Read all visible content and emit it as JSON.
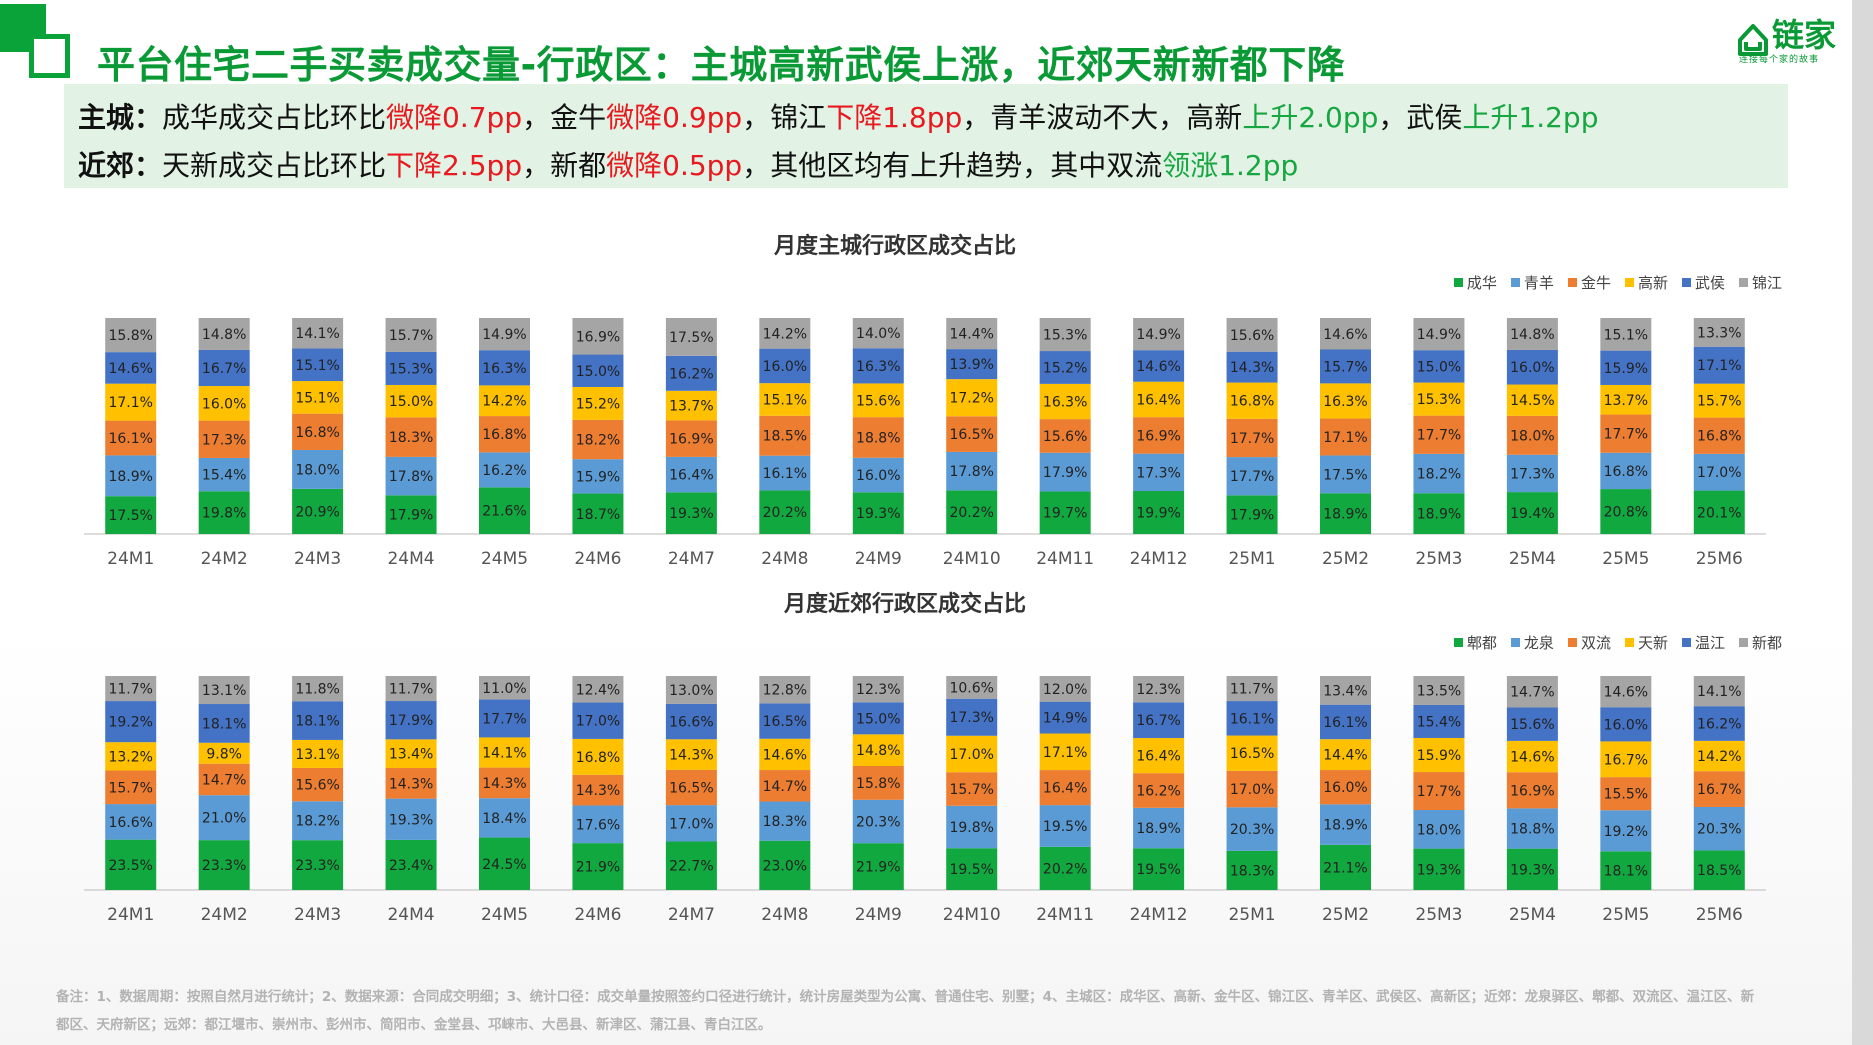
{
  "title": "平台住宅二手买卖成交量-行政区：主城高新武侯上涨，近郊天新新都下降",
  "logo": {
    "name": "链家",
    "slogan": "连接每个家的故事"
  },
  "summary": [
    {
      "label": "主城：",
      "segments": [
        {
          "text": "成华成交占比环比",
          "color": "normal"
        },
        {
          "text": "微降0.7pp",
          "color": "red"
        },
        {
          "text": "，金牛",
          "color": "normal"
        },
        {
          "text": "微降0.9pp",
          "color": "red"
        },
        {
          "text": "，锦江",
          "color": "normal"
        },
        {
          "text": "下降1.8pp",
          "color": "red"
        },
        {
          "text": "，青羊波动不大，高新",
          "color": "normal"
        },
        {
          "text": "上升2.0pp",
          "color": "green"
        },
        {
          "text": "，武侯",
          "color": "normal"
        },
        {
          "text": "上升1.2pp",
          "color": "green"
        }
      ]
    },
    {
      "label": "近郊：",
      "segments": [
        {
          "text": "天新成交占比环比",
          "color": "normal"
        },
        {
          "text": "下降2.5pp",
          "color": "red"
        },
        {
          "text": "，新都",
          "color": "normal"
        },
        {
          "text": "微降0.5pp",
          "color": "red"
        },
        {
          "text": "，其他区均有上升趋势，其中双流",
          "color": "normal"
        },
        {
          "text": "领涨1.2pp",
          "color": "green"
        }
      ]
    }
  ],
  "chart_data": [
    {
      "type": "bar",
      "stacked": true,
      "title": "月度主城行政区成交占比",
      "categories": [
        "24M1",
        "24M2",
        "24M3",
        "24M4",
        "24M5",
        "24M6",
        "24M7",
        "24M8",
        "24M9",
        "24M10",
        "24M11",
        "24M12",
        "25M1",
        "25M2",
        "25M3",
        "25M4",
        "25M5",
        "25M6"
      ],
      "legend_position": "top-right",
      "series": [
        {
          "name": "成华",
          "color": "#11a83f",
          "values": [
            17.5,
            19.8,
            20.9,
            17.9,
            21.6,
            18.7,
            19.3,
            20.2,
            19.3,
            20.2,
            19.7,
            19.9,
            17.9,
            18.9,
            18.9,
            19.4,
            20.8,
            20.1
          ]
        },
        {
          "name": "青羊",
          "color": "#5b9bd5",
          "values": [
            18.9,
            15.4,
            18.0,
            17.8,
            16.2,
            15.9,
            16.4,
            16.1,
            16.0,
            17.8,
            17.9,
            17.3,
            17.7,
            17.5,
            18.2,
            17.3,
            16.8,
            17.0
          ]
        },
        {
          "name": "金牛",
          "color": "#ed7d31",
          "values": [
            16.1,
            17.3,
            16.8,
            18.3,
            16.8,
            18.2,
            16.9,
            18.5,
            18.8,
            16.5,
            15.6,
            16.9,
            17.7,
            17.1,
            17.7,
            18.0,
            17.7,
            16.8
          ]
        },
        {
          "name": "高新",
          "color": "#ffc000",
          "values": [
            17.1,
            16.0,
            15.1,
            15.0,
            14.2,
            15.2,
            13.7,
            15.1,
            15.6,
            17.2,
            16.3,
            16.4,
            16.8,
            16.3,
            15.3,
            14.5,
            13.7,
            15.7
          ]
        },
        {
          "name": "武侯",
          "color": "#4472c4",
          "values": [
            14.6,
            16.7,
            15.1,
            15.3,
            16.3,
            15.0,
            16.2,
            16.0,
            16.3,
            13.9,
            15.2,
            14.6,
            14.3,
            15.7,
            15.0,
            16.0,
            15.9,
            17.1
          ]
        },
        {
          "name": "锦江",
          "color": "#a5a5a5",
          "values": [
            15.8,
            14.8,
            14.1,
            15.7,
            14.9,
            16.9,
            17.5,
            14.2,
            14.0,
            14.4,
            15.3,
            14.9,
            15.6,
            14.6,
            14.9,
            14.8,
            15.1,
            13.3
          ]
        }
      ]
    },
    {
      "type": "bar",
      "stacked": true,
      "title": "月度近郊行政区成交占比",
      "categories": [
        "24M1",
        "24M2",
        "24M3",
        "24M4",
        "24M5",
        "24M6",
        "24M7",
        "24M8",
        "24M9",
        "24M10",
        "24M11",
        "24M12",
        "25M1",
        "25M2",
        "25M3",
        "25M4",
        "25M5",
        "25M6"
      ],
      "legend_position": "top-right",
      "series": [
        {
          "name": "郫都",
          "color": "#11a83f",
          "values": [
            23.5,
            23.3,
            23.3,
            23.4,
            24.5,
            21.9,
            22.7,
            23.0,
            21.9,
            19.5,
            20.2,
            19.5,
            18.3,
            21.1,
            19.3,
            19.3,
            18.1,
            18.5
          ]
        },
        {
          "name": "龙泉",
          "color": "#5b9bd5",
          "values": [
            16.6,
            21.0,
            18.2,
            19.3,
            18.4,
            17.6,
            17.0,
            18.3,
            20.3,
            19.8,
            19.5,
            18.9,
            20.3,
            18.9,
            18.0,
            18.8,
            19.2,
            20.3
          ]
        },
        {
          "name": "双流",
          "color": "#ed7d31",
          "values": [
            15.7,
            14.7,
            15.6,
            14.3,
            14.3,
            14.3,
            16.5,
            14.7,
            15.8,
            15.7,
            16.4,
            16.2,
            17.0,
            16.0,
            17.7,
            16.9,
            15.5,
            16.7
          ]
        },
        {
          "name": "天新",
          "color": "#ffc000",
          "values": [
            13.2,
            9.8,
            13.1,
            13.4,
            14.1,
            16.8,
            14.3,
            14.6,
            14.8,
            17.0,
            17.1,
            16.4,
            16.5,
            14.4,
            15.9,
            14.6,
            16.7,
            14.2
          ]
        },
        {
          "name": "温江",
          "color": "#4472c4",
          "values": [
            19.2,
            18.1,
            18.1,
            17.9,
            17.7,
            17.0,
            16.6,
            16.5,
            15.0,
            17.3,
            14.9,
            16.7,
            16.1,
            16.1,
            15.4,
            15.6,
            16.0,
            16.2
          ]
        },
        {
          "name": "新都",
          "color": "#a5a5a5",
          "values": [
            11.7,
            13.1,
            11.8,
            11.7,
            11.0,
            12.4,
            13.0,
            12.8,
            12.3,
            10.6,
            12.0,
            12.3,
            11.7,
            13.4,
            13.5,
            14.7,
            14.6,
            14.1
          ]
        }
      ]
    }
  ],
  "footnote": "备注：1、数据周期：按照自然月进行统计；2、数据来源：合同成交明细；3、统计口径：成交单量按照签约口径进行统计，统计房屋类型为公寓、普通住宅、别墅；4、主城区：成华区、高新、金牛区、锦江区、青羊区、武侯区、高新区；近郊：龙泉驿区、郫都、双流区、温江区、新都区、天府新区；远郊：都江堰市、崇州市、彭州市、简阳市、金堂县、邛崃市、大邑县、新津区、蒲江县、青白江区。"
}
